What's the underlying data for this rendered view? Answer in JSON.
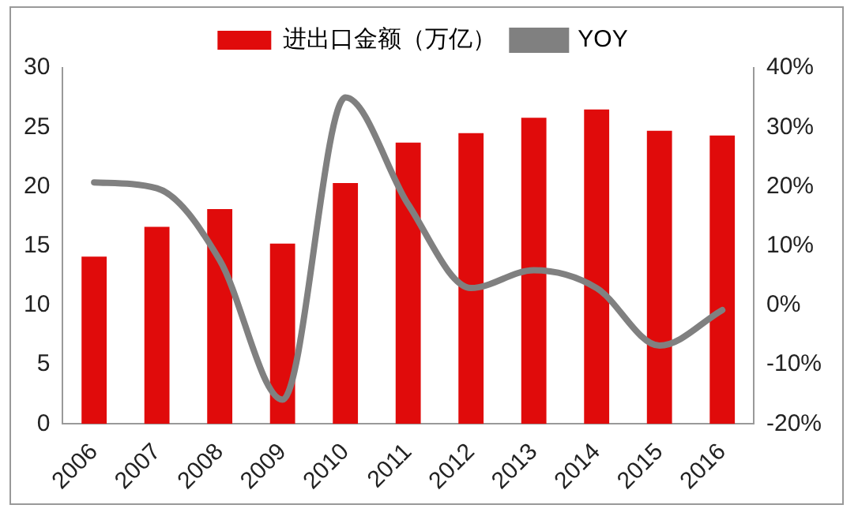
{
  "chart_data": {
    "type": "bar",
    "categories": [
      "2006",
      "2007",
      "2008",
      "2009",
      "2010",
      "2011",
      "2012",
      "2013",
      "2014",
      "2015",
      "2016"
    ],
    "series": [
      {
        "name": "进出口金额（万亿）",
        "color": "#e00b0b",
        "values": [
          14.1,
          16.6,
          18.1,
          15.2,
          20.3,
          23.7,
          24.5,
          25.8,
          26.5,
          24.7,
          24.3
        ]
      },
      {
        "name": "YOY",
        "type": "line",
        "axis": "y2",
        "color": "#808080",
        "values": [
          20.7,
          19.7,
          7.6,
          -15.9,
          35,
          17,
          2.9,
          5.9,
          2.9,
          -6.8,
          -0.8
        ]
      }
    ],
    "ylim": [
      0,
      30
    ],
    "yticks": [
      0,
      5,
      10,
      15,
      20,
      25,
      30
    ],
    "y2lim": [
      -20,
      40
    ],
    "y2ticks": [
      {
        "value": -20,
        "label": "-20%"
      },
      {
        "value": -10,
        "label": "-10%"
      },
      {
        "value": 0,
        "label": "0%"
      },
      {
        "value": 10,
        "label": "10%"
      },
      {
        "value": 20,
        "label": "20%"
      },
      {
        "value": 30,
        "label": "30%"
      },
      {
        "value": 40,
        "label": "40%"
      }
    ],
    "grid": false,
    "legend": "top",
    "marker": "none",
    "line_style": "solid"
  }
}
